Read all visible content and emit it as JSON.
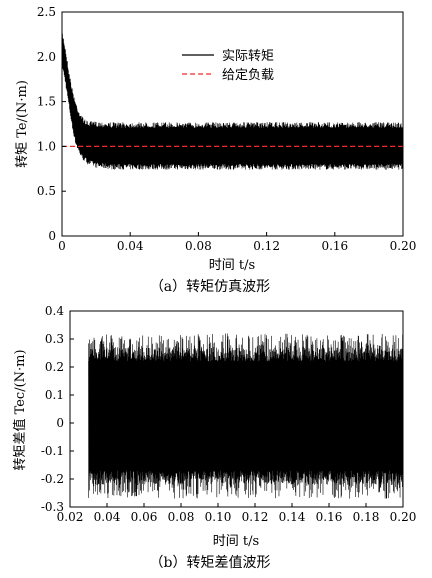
{
  "chart_data": [
    {
      "type": "line",
      "caption": "（a）转矩仿真波形",
      "xlabel": "时间 t/s",
      "ylabel": "转矩 Te/(N·m)",
      "xlim": [
        0,
        0.2
      ],
      "ylim": [
        0,
        2.5
      ],
      "xticks": [
        "0",
        "0.04",
        "0.08",
        "0.12",
        "0.16",
        "0.20"
      ],
      "yticks": [
        "0",
        "0.5",
        "1.0",
        "1.5",
        "2.0",
        "2.5"
      ],
      "legend_position": "top-right",
      "grid": false,
      "series": [
        {
          "name": "实际转矩",
          "color": "#000000",
          "style": "dense-oscillation",
          "upper_envelope": {
            "x": [
              0.0,
              0.002,
              0.004,
              0.006,
              0.008,
              0.01,
              0.012,
              0.015,
              0.02,
              0.03,
              0.2
            ],
            "y": [
              2.3,
              2.1,
              1.85,
              1.65,
              1.5,
              1.4,
              1.33,
              1.28,
              1.28,
              1.27,
              1.27
            ]
          },
          "lower_envelope": {
            "x": [
              0.0,
              0.002,
              0.004,
              0.006,
              0.008,
              0.01,
              0.012,
              0.015,
              0.02,
              0.03,
              0.2
            ],
            "y": [
              1.9,
              1.7,
              1.45,
              1.2,
              1.02,
              0.92,
              0.85,
              0.8,
              0.76,
              0.74,
              0.74
            ]
          }
        },
        {
          "name": "给定负载",
          "color": "#e03030",
          "style": "dashed",
          "x": [
            0,
            0.2
          ],
          "y": [
            1.0,
            1.0
          ]
        }
      ]
    },
    {
      "type": "line",
      "caption": "（b）转矩差值波形",
      "xlabel": "时间 t/s",
      "ylabel": "转矩差值 Tec/(N·m)",
      "xlim": [
        0.02,
        0.2
      ],
      "ylim": [
        -0.3,
        0.4
      ],
      "xticks": [
        "0.02",
        "0.04",
        "0.06",
        "0.08",
        "0.10",
        "0.12",
        "0.14",
        "0.16",
        "0.18",
        "0.20"
      ],
      "yticks": [
        "-0.3",
        "-0.2",
        "-0.1",
        "0",
        "0.1",
        "0.2",
        "0.3",
        "0.4"
      ],
      "grid": false,
      "series": [
        {
          "color": "#000000",
          "style": "dense-oscillation",
          "x_range": [
            0.03,
            0.2
          ],
          "core_band": [
            -0.17,
            0.22
          ],
          "upper_spikes_max": 0.32,
          "lower_spikes_min": -0.27
        }
      ]
    }
  ]
}
